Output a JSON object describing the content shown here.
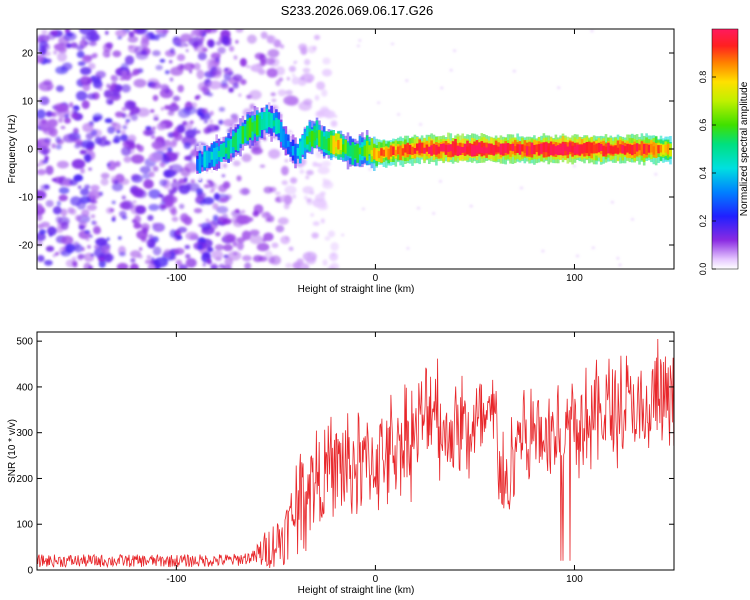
{
  "title": "S233.2026.069.06.17.G26",
  "chart_data": [
    {
      "type": "heatmap",
      "title": "S233.2026.069.06.17.G26",
      "xlabel": "Height of straight line (km)",
      "ylabel": "Frequency (Hz)",
      "xlim": [
        -170,
        150
      ],
      "ylim": [
        -25,
        25
      ],
      "xticks": [
        -100,
        0,
        100
      ],
      "xtick_labels": [
        "-100",
        "0",
        "100"
      ],
      "yticks": [
        -20,
        -10,
        0,
        10,
        20
      ],
      "ytick_labels": [
        "-20",
        "-10",
        "0",
        "10",
        "20"
      ],
      "colorbar": {
        "label": "Normalized spectral amplitude",
        "range": [
          0,
          1
        ],
        "ticks": [
          0,
          0.2,
          0.4,
          0.6,
          0.8
        ],
        "tick_labels": [
          "0.0",
          "0.2",
          "0.4",
          "0.6",
          "0.8"
        ]
      },
      "noise_region_x": [
        -170,
        -70
      ],
      "ridge": {
        "x": [
          -90,
          -85,
          -80,
          -75,
          -70,
          -65,
          -60,
          -55,
          -50,
          -45,
          -40,
          -35,
          -30,
          -25,
          -20,
          -15,
          -10,
          -5,
          0,
          10,
          20,
          30,
          40,
          50,
          60,
          70,
          80,
          90,
          100,
          110,
          120,
          130,
          140,
          148
        ],
        "freq": [
          -3,
          -2,
          -1,
          0,
          2,
          4,
          5,
          6,
          5,
          1,
          -1,
          2,
          3,
          1,
          1,
          0,
          -1,
          0,
          -1,
          -0.5,
          0,
          0,
          0,
          0,
          0,
          0,
          0,
          0,
          0,
          0,
          0,
          0,
          0,
          -0.5
        ],
        "amplitude": [
          0.3,
          0.35,
          0.4,
          0.45,
          0.45,
          0.5,
          0.5,
          0.45,
          0.4,
          0.3,
          0.3,
          0.5,
          0.55,
          0.5,
          0.8,
          0.5,
          0.5,
          0.55,
          0.8,
          0.85,
          0.9,
          0.92,
          0.95,
          0.95,
          0.95,
          0.9,
          0.9,
          0.95,
          0.95,
          0.9,
          0.9,
          0.9,
          0.85,
          0.7
        ]
      }
    },
    {
      "type": "line",
      "xlabel": "Height of straight line (km)",
      "ylabel": "SNR (10 * v/v)",
      "xlim": [
        -170,
        150
      ],
      "ylim": [
        0,
        520
      ],
      "xticks": [
        -100,
        0,
        100
      ],
      "xtick_labels": [
        "-100",
        "0",
        "100"
      ],
      "yticks": [
        0,
        100,
        200,
        300,
        400,
        500
      ],
      "ytick_labels": [
        "0",
        "100",
        "200",
        "300",
        "400",
        "500"
      ],
      "color": "#e8262a",
      "series": [
        {
          "name": "SNR",
          "x": [
            -170,
            -150,
            -130,
            -110,
            -90,
            -70,
            -60,
            -50,
            -45,
            -40,
            -35,
            -30,
            -20,
            -10,
            0,
            10,
            20,
            25,
            30,
            35,
            40,
            50,
            60,
            65,
            70,
            80,
            90,
            100,
            110,
            120,
            130,
            135,
            140,
            150
          ],
          "y": [
            20,
            20,
            20,
            20,
            20,
            22,
            30,
            60,
            80,
            140,
            180,
            200,
            220,
            230,
            240,
            270,
            300,
            330,
            380,
            280,
            320,
            300,
            330,
            150,
            300,
            300,
            300,
            320,
            340,
            350,
            360,
            300,
            380,
            360
          ]
        }
      ]
    }
  ]
}
